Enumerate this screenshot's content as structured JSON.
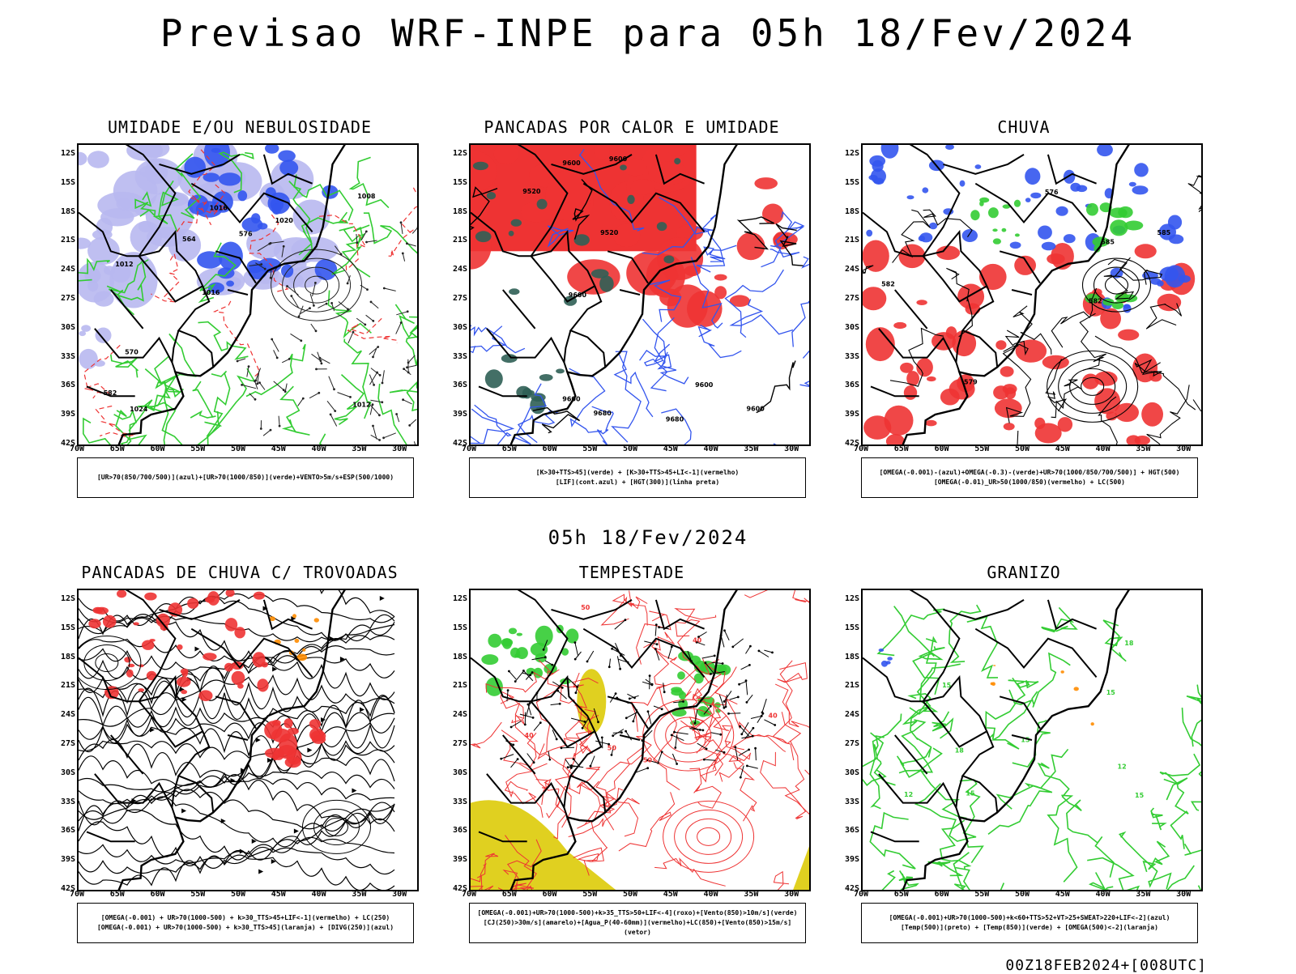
{
  "main_title": "Previsao WRF-INPE  para 05h 18/Fev/2024",
  "subtitle": "05h 18/Fev/2024",
  "footer": "00Z18FEB2024+[008UTC]",
  "lat_labels": [
    "12S",
    "15S",
    "18S",
    "21S",
    "24S",
    "27S",
    "30S",
    "33S",
    "36S",
    "39S",
    "42S"
  ],
  "lon_labels": [
    "70W",
    "65W",
    "60W",
    "55W",
    "50W",
    "45W",
    "40W",
    "35W",
    "30W"
  ],
  "colors": {
    "blue": "#3355ee",
    "light_blue": "#b8b8f0",
    "green": "#33cc33",
    "red": "#ee3333",
    "dark_green": "#2f5f55",
    "yellow": "#e0d020",
    "orange": "#ff8c00"
  },
  "panels": [
    {
      "title": "UMIDADE E/OU NEBULOSIDADE",
      "legend": [
        "[UR>70(850/700/500)](azul)+[UR>70(1000/850)](verde)+VENTO>5m/s+ESP(500/1000)"
      ],
      "contour_labels": [
        "1012",
        "1012",
        "1008",
        "1016",
        "1020",
        "1024",
        "1016",
        "576",
        "570",
        "564",
        "582"
      ]
    },
    {
      "title": "PANCADAS POR CALOR E UMIDADE",
      "legend": [
        "[K>30+TTS>45](verde) + [K>30+TTS>45+LI<-1](vermelho)",
        "[LIF](cont.azul) + [HGT(300)](linha preta)"
      ],
      "contour_labels": [
        "9680",
        "9680",
        "9600",
        "9600",
        "9600",
        "9520",
        "9600",
        "9600",
        "9600",
        "9520"
      ]
    },
    {
      "title": "CHUVA",
      "legend": [
        "[OMEGA(-0.001)-(azul)+OMEGA(-0.3)-(verde)+UR>70(1000/850/700/500)] + HGT(500)",
        "[OMEGA(-0.01)_UR>50(1000/850)(vermelho) + LC(500)"
      ],
      "contour_labels": [
        "585",
        "576",
        "582",
        "582",
        "579",
        "585"
      ]
    },
    {
      "title": "PANCADAS DE CHUVA C/ TROVOADAS",
      "legend": [
        "[OMEGA(-0.001) + UR>70(1000-500) + k>30_TTS>45+LIF<-1](vermelho) + LC(250)",
        "[OMEGA(-0.001) + UR>70(1000-500) + k>30_TTS>45](laranja) + [DIVG(250)](azul)"
      ],
      "contour_labels": []
    },
    {
      "title": "TEMPESTADE",
      "legend": [
        "[OMEGA(-0.001)+UR>70(1000-500)+k>35_TTS>50+LIF<-4](roxo)+[Vento(850)>10m/s](verde)",
        "[CJ(250)>30m/s](amarelo)+[Agua_P(40-60mm)](vermelho)+LC(850)+[Vento(850)>15m/s](vetor)"
      ],
      "contour_labels": [
        "50",
        "40",
        "40",
        "50",
        "50",
        "40"
      ]
    },
    {
      "title": "GRANIZO",
      "legend": [
        "[OMEGA(-0.001)+UR>70(1000-500)+k<60+TTS>52+VT>25+SWEAT>220+LIF<-2](azul)",
        "[Temp(500)](preto) + [Temp(850)](verde) + [OMEGA(500)<-2](laranja)"
      ],
      "contour_labels": [
        "15",
        "18",
        "15",
        "12",
        "15",
        "15",
        "12",
        "15",
        "18"
      ]
    }
  ]
}
